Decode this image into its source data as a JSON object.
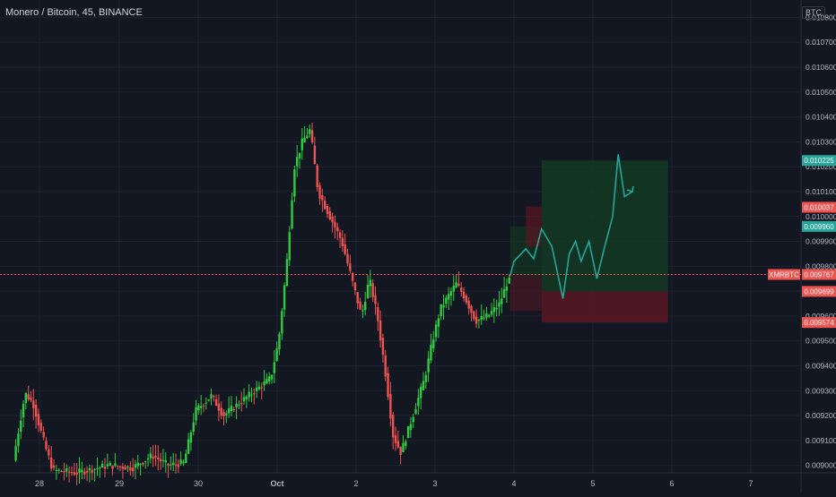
{
  "title": "Monero / Bitcoin, 45, BINANCE",
  "y_unit": "BTC",
  "colors": {
    "background": "#131722",
    "grid": "#1f2330",
    "up": "#26a69a",
    "up_wick": "#2ecc40",
    "down": "#ef5350",
    "projection": "#26a69a",
    "target_zone": "#143a22",
    "stop_zone": "#5a1722",
    "axis_text": "#b2b5be"
  },
  "chart_data": {
    "type": "candlestick",
    "title": "Monero / Bitcoin, 45, BINANCE",
    "x_ticks": [
      "28",
      "29",
      "30",
      "Oct",
      "2",
      "3",
      "4",
      "5",
      "6",
      "7"
    ],
    "y_ticks": [
      "0.010800",
      "0.010700",
      "0.010600",
      "0.010500",
      "0.010400",
      "0.010300",
      "0.010200",
      "0.010100",
      "0.010000",
      "0.009900",
      "0.009800",
      "0.009700",
      "0.009600",
      "0.009500",
      "0.009400",
      "0.009300",
      "0.009200",
      "0.009100",
      "0.009000"
    ],
    "ylim": [
      0.00897,
      0.01087
    ],
    "xlim": [
      27.6,
      7.8
    ],
    "grid": true,
    "price_path": [
      [
        27.7,
        0.00902
      ],
      [
        27.85,
        0.00929
      ],
      [
        27.95,
        0.00925
      ],
      [
        28.1,
        0.00908
      ],
      [
        28.2,
        0.00898
      ],
      [
        28.5,
        0.00897
      ],
      [
        28.9,
        0.009
      ],
      [
        29.2,
        0.00899
      ],
      [
        29.45,
        0.00904
      ],
      [
        29.65,
        0.009
      ],
      [
        29.85,
        0.00901
      ],
      [
        30.0,
        0.00922
      ],
      [
        30.2,
        0.00928
      ],
      [
        30.35,
        0.0092
      ],
      [
        30.55,
        0.00925
      ],
      [
        30.75,
        0.0093
      ],
      [
        30.95,
        0.00935
      ],
      [
        31.05,
        0.0095
      ],
      [
        31.15,
        0.0098
      ],
      [
        31.25,
        0.0102
      ],
      [
        31.35,
        0.0103
      ],
      [
        31.45,
        0.01035
      ],
      [
        31.55,
        0.0101
      ],
      [
        31.7,
        0.01
      ],
      [
        31.85,
        0.0099
      ],
      [
        32.0,
        0.00972
      ],
      [
        32.1,
        0.0096
      ],
      [
        32.2,
        0.00975
      ],
      [
        32.3,
        0.0096
      ],
      [
        32.4,
        0.00938
      ],
      [
        32.5,
        0.00912
      ],
      [
        32.6,
        0.00905
      ],
      [
        32.75,
        0.0092
      ],
      [
        32.9,
        0.00935
      ],
      [
        33.0,
        0.0095
      ],
      [
        33.1,
        0.00963
      ],
      [
        33.3,
        0.00973
      ],
      [
        33.4,
        0.00968
      ],
      [
        33.55,
        0.00958
      ],
      [
        33.7,
        0.0096
      ],
      [
        33.85,
        0.00965
      ],
      [
        33.95,
        0.00974
      ]
    ],
    "projection_path": [
      [
        33.95,
        0.00976
      ],
      [
        34.0,
        0.00982
      ],
      [
        34.15,
        0.00987
      ],
      [
        34.25,
        0.00983
      ],
      [
        34.35,
        0.00995
      ],
      [
        34.48,
        0.00988
      ],
      [
        34.62,
        0.00967
      ],
      [
        34.7,
        0.00985
      ],
      [
        34.78,
        0.0099
      ],
      [
        34.85,
        0.00982
      ],
      [
        34.95,
        0.0099
      ],
      [
        35.05,
        0.00975
      ],
      [
        35.15,
        0.00988
      ],
      [
        35.25,
        0.01
      ],
      [
        35.32,
        0.01025
      ],
      [
        35.4,
        0.01008
      ],
      [
        35.5,
        0.0101
      ]
    ],
    "target_zone": {
      "x_start": 34.35,
      "x_end": 35.95,
      "price_top": 0.010225,
      "price_bottom": 0.009699
    },
    "stop_zone": {
      "x_start": 34.35,
      "x_end": 35.95,
      "price_top": 0.009699,
      "price_bottom": 0.009574
    },
    "price_labels": [
      {
        "text": "0.010225",
        "color": "#26a69a"
      },
      {
        "text": "0.010037",
        "color": "#ef5350"
      },
      {
        "text": "0.009960",
        "color": "#26a69a"
      },
      {
        "text": "XMRBTC",
        "color": "#ef5350"
      },
      {
        "text": "0.009767",
        "color": "#ef5350"
      },
      {
        "text": "0.009699",
        "color": "#ef5350"
      },
      {
        "text": "0.009574",
        "color": "#ef5350"
      }
    ],
    "current_price": 0.009767
  }
}
